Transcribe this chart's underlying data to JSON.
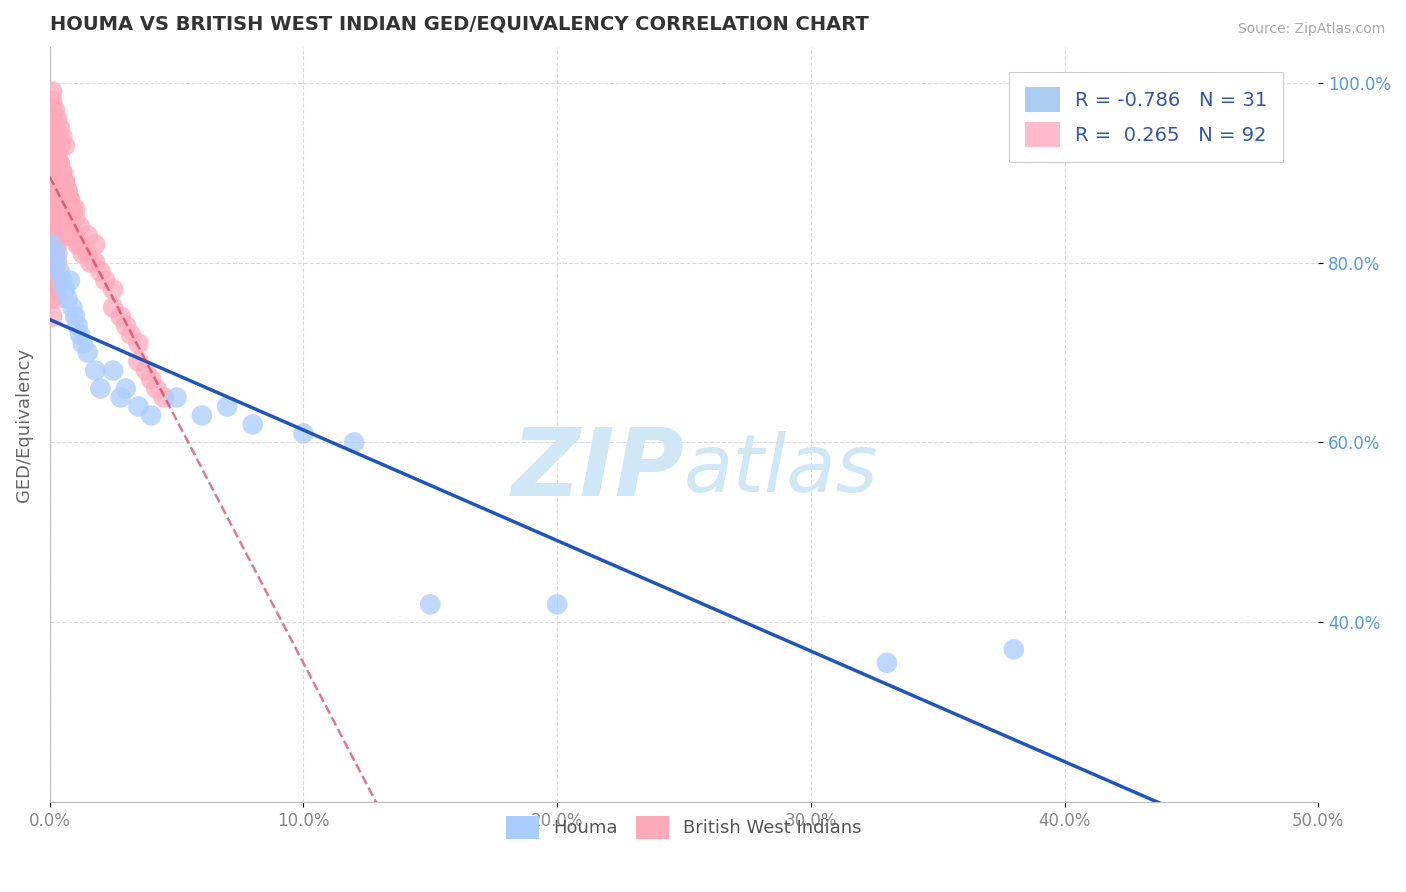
{
  "title": "HOUMA VS BRITISH WEST INDIAN GED/EQUIVALENCY CORRELATION CHART",
  "source": "Source: ZipAtlas.com",
  "ylabel": "GED/Equivalency",
  "xlim": [
    0.0,
    0.5
  ],
  "ylim": [
    0.2,
    1.04
  ],
  "xticks": [
    0.0,
    0.1,
    0.2,
    0.3,
    0.4,
    0.5
  ],
  "xticklabels": [
    "0.0%",
    "10.0%",
    "20.0%",
    "30.0%",
    "40.0%",
    "50.0%"
  ],
  "yticks": [
    0.4,
    0.6,
    0.8,
    1.0
  ],
  "yticklabels": [
    "40.0%",
    "60.0%",
    "80.0%",
    "100.0%"
  ],
  "houma_color": "#aaccff",
  "bwi_color": "#ffaabb",
  "houma_line_color": "#2255bb",
  "bwi_line_color": "#cc3355",
  "houma_R": -0.786,
  "houma_N": 31,
  "bwi_R": 0.265,
  "bwi_N": 92,
  "houma_scatter_x": [
    0.001,
    0.002,
    0.003,
    0.004,
    0.005,
    0.006,
    0.007,
    0.008,
    0.009,
    0.01,
    0.011,
    0.012,
    0.013,
    0.015,
    0.018,
    0.02,
    0.025,
    0.028,
    0.03,
    0.035,
    0.04,
    0.05,
    0.06,
    0.07,
    0.08,
    0.1,
    0.12,
    0.15,
    0.2,
    0.33,
    0.38
  ],
  "houma_scatter_y": [
    0.82,
    0.8,
    0.81,
    0.79,
    0.78,
    0.77,
    0.76,
    0.78,
    0.75,
    0.74,
    0.73,
    0.72,
    0.71,
    0.7,
    0.68,
    0.66,
    0.68,
    0.65,
    0.66,
    0.64,
    0.63,
    0.65,
    0.63,
    0.64,
    0.62,
    0.61,
    0.6,
    0.42,
    0.42,
    0.355,
    0.37
  ],
  "bwi_scatter_x": [
    0.001,
    0.001,
    0.001,
    0.001,
    0.001,
    0.001,
    0.001,
    0.001,
    0.001,
    0.001,
    0.001,
    0.001,
    0.001,
    0.002,
    0.002,
    0.002,
    0.002,
    0.002,
    0.002,
    0.002,
    0.002,
    0.002,
    0.003,
    0.003,
    0.003,
    0.003,
    0.003,
    0.003,
    0.003,
    0.003,
    0.003,
    0.004,
    0.004,
    0.004,
    0.004,
    0.005,
    0.005,
    0.005,
    0.005,
    0.006,
    0.006,
    0.006,
    0.006,
    0.007,
    0.007,
    0.008,
    0.008,
    0.008,
    0.009,
    0.01,
    0.01,
    0.011,
    0.012,
    0.012,
    0.013,
    0.015,
    0.015,
    0.016,
    0.018,
    0.018,
    0.02,
    0.022,
    0.025,
    0.025,
    0.028,
    0.03,
    0.032,
    0.035,
    0.035,
    0.038,
    0.04,
    0.042,
    0.045,
    0.001,
    0.001,
    0.002,
    0.002,
    0.003,
    0.003,
    0.004,
    0.004,
    0.005,
    0.006,
    0.007,
    0.008,
    0.01,
    0.001,
    0.002,
    0.003,
    0.004,
    0.005,
    0.006
  ],
  "bwi_scatter_y": [
    0.94,
    0.97,
    0.95,
    0.92,
    0.9,
    0.88,
    0.86,
    0.84,
    0.82,
    0.8,
    0.78,
    0.76,
    0.74,
    0.93,
    0.91,
    0.89,
    0.87,
    0.85,
    0.83,
    0.81,
    0.79,
    0.77,
    0.92,
    0.9,
    0.88,
    0.86,
    0.84,
    0.82,
    0.8,
    0.78,
    0.76,
    0.91,
    0.89,
    0.87,
    0.85,
    0.9,
    0.88,
    0.86,
    0.84,
    0.89,
    0.87,
    0.85,
    0.83,
    0.88,
    0.86,
    0.87,
    0.85,
    0.83,
    0.86,
    0.85,
    0.83,
    0.82,
    0.84,
    0.82,
    0.81,
    0.83,
    0.81,
    0.8,
    0.82,
    0.8,
    0.79,
    0.78,
    0.77,
    0.75,
    0.74,
    0.73,
    0.72,
    0.71,
    0.69,
    0.68,
    0.67,
    0.66,
    0.65,
    0.96,
    0.98,
    0.95,
    0.93,
    0.94,
    0.92,
    0.93,
    0.91,
    0.9,
    0.89,
    0.88,
    0.87,
    0.86,
    0.99,
    0.97,
    0.96,
    0.95,
    0.94,
    0.93
  ],
  "background_color": "#ffffff",
  "grid_color": "#cccccc",
  "watermark_zip": "ZIP",
  "watermark_atlas": "atlas",
  "watermark_color": "#d0e8f5",
  "legend_box_color_houma": "#aaccee",
  "legend_box_color_bwi": "#ffbbcc",
  "legend_text_color": "#3355aa",
  "tick_color_y": "#5599dd",
  "tick_color_x": "#888888"
}
